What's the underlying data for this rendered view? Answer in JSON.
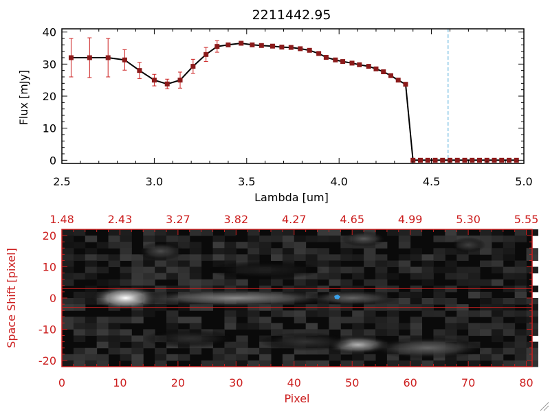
{
  "chart_data": [
    {
      "type": "line",
      "title": "2211442.95",
      "xlabel": "Lambda [um]",
      "ylabel": "Flux [mJy]",
      "xlim": [
        2.5,
        5.0
      ],
      "ylim": [
        -1,
        41
      ],
      "xticks": [
        "2.5",
        "3.0",
        "3.5",
        "4.0",
        "4.5",
        "5.0"
      ],
      "yticks": [
        "0",
        "10",
        "20",
        "30",
        "40"
      ],
      "marker_color": "#8b1a1a",
      "errorbar_color": "#cc2020",
      "line_color": "#000000",
      "reference_line": {
        "x": 4.59,
        "color": "#4aa8d8",
        "style": "dashed"
      },
      "series": [
        {
          "x": [
            2.55,
            2.65,
            2.75,
            2.84,
            2.92,
            3.0,
            3.07,
            3.14,
            3.21,
            3.28,
            3.34,
            3.4,
            3.47,
            3.53,
            3.58,
            3.64,
            3.69,
            3.74,
            3.79,
            3.84,
            3.89,
            3.93,
            3.98,
            4.02,
            4.07,
            4.11,
            4.16,
            4.2,
            4.24,
            4.28,
            4.32,
            4.36,
            4.4,
            4.44,
            4.48,
            4.52,
            4.56,
            4.6,
            4.64,
            4.68,
            4.72,
            4.76,
            4.8,
            4.84,
            4.88,
            4.92,
            4.96
          ],
          "y": [
            32,
            32,
            32,
            31.3,
            28,
            25,
            23.8,
            25,
            29.3,
            33,
            35.5,
            36,
            36.5,
            36,
            35.8,
            35.6,
            35.3,
            35.2,
            34.8,
            34.3,
            33.3,
            32.1,
            31.3,
            30.8,
            30.3,
            29.8,
            29.3,
            28.5,
            27.6,
            26.4,
            25,
            23.7,
            0,
            0,
            0,
            0,
            0,
            0,
            0,
            0,
            0,
            0,
            0,
            0,
            0,
            0,
            0
          ],
          "yerr": [
            6,
            6.2,
            6,
            3.2,
            2.5,
            1.8,
            1.5,
            2.5,
            2.2,
            2.2,
            1.8,
            0.5,
            0.5,
            0.5,
            0.5,
            0.5,
            0.5,
            0.5,
            0.5,
            0.5,
            0.5,
            0.5,
            0.5,
            0.5,
            0.5,
            0.5,
            0.5,
            0.5,
            0.5,
            0.5,
            0.5,
            0.5,
            0,
            0,
            0,
            0,
            0,
            0,
            0,
            0,
            0,
            0,
            0,
            0,
            0,
            0,
            0
          ]
        }
      ]
    },
    {
      "type": "heatmap",
      "xlabel": "Pixel",
      "ylabel": "Space Shift [pixel]",
      "xlim": [
        0,
        81
      ],
      "ylim": [
        -22,
        22
      ],
      "xticks": [
        "0",
        "10",
        "20",
        "30",
        "40",
        "50",
        "60",
        "70",
        "80"
      ],
      "yticks": [
        "-20",
        "-10",
        "0",
        "10",
        "20"
      ],
      "top_ticks": [
        "1.48",
        "2.43",
        "3.27",
        "3.82",
        "4.27",
        "4.65",
        "4.99",
        "5.30",
        "5.55"
      ],
      "axis_color": "#cc1f1f",
      "extraction_band": [
        -3,
        3
      ],
      "marker": {
        "x": 47.5,
        "y": 0,
        "color": "#3aa0e8"
      },
      "sources": [
        {
          "x": 11,
          "y": 0,
          "w": 6,
          "h": 4,
          "peak": 1.0
        },
        {
          "x": 30,
          "y": 0,
          "w": 18,
          "h": 3,
          "peak": 0.55
        },
        {
          "x": 50,
          "y": 0,
          "w": 8,
          "h": 2.5,
          "peak": 0.4
        },
        {
          "x": 17,
          "y": 15,
          "w": 4,
          "h": 3,
          "peak": 0.3
        },
        {
          "x": 52,
          "y": 19,
          "w": 4,
          "h": 2.5,
          "peak": 0.35
        },
        {
          "x": 70,
          "y": 17,
          "w": 3,
          "h": 2.5,
          "peak": 0.25
        },
        {
          "x": 51,
          "y": -15,
          "w": 6,
          "h": 3,
          "peak": 0.7
        },
        {
          "x": 63,
          "y": -16,
          "w": 10,
          "h": 3.5,
          "peak": 0.4
        },
        {
          "x": 42,
          "y": -14,
          "w": 8,
          "h": 3,
          "peak": 0.2
        },
        {
          "x": 22,
          "y": -13,
          "w": 8,
          "h": 3,
          "peak": 0.18
        },
        {
          "x": 35,
          "y": 9,
          "w": 10,
          "h": 3,
          "peak": 0.12
        }
      ]
    }
  ]
}
